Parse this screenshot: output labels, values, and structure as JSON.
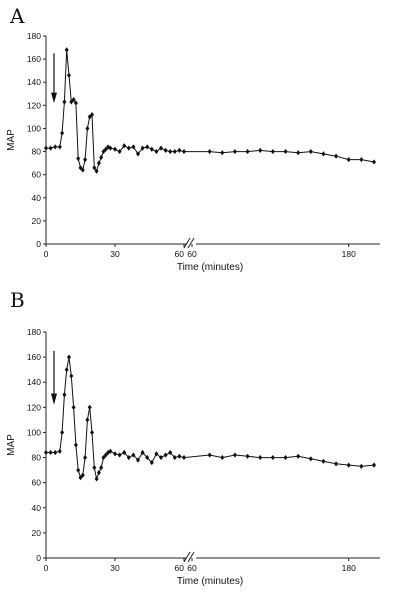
{
  "chart_data": [
    {
      "panel": "A",
      "type": "line",
      "ylabel": "MAP",
      "xlabel": "Time (minutes)",
      "ylim": [
        0,
        180
      ],
      "yticks": [
        0,
        20,
        40,
        60,
        80,
        100,
        120,
        140,
        160,
        180
      ],
      "xticks_left": [
        "0",
        "30",
        "60"
      ],
      "xticks_right": [
        "60",
        "180"
      ],
      "axis_break": true,
      "annotation": "downward-arrow",
      "series": [
        {
          "x": [
            0,
            2,
            4,
            6,
            7,
            8,
            9,
            10,
            11,
            12,
            13,
            14,
            15,
            16,
            17,
            18,
            19,
            20,
            21,
            22,
            23,
            24,
            25,
            26,
            27,
            28,
            30,
            32,
            34,
            36,
            38,
            40,
            42,
            44,
            46,
            48,
            50,
            52,
            54,
            56,
            58,
            60,
            70,
            80,
            90,
            100,
            110,
            120,
            130,
            140,
            150,
            160,
            170,
            180,
            190,
            200
          ],
          "y": [
            83,
            83,
            84,
            84,
            96,
            123,
            168,
            146,
            123,
            125,
            122,
            74,
            66,
            64,
            73,
            100,
            110,
            112,
            66,
            63,
            70,
            75,
            80,
            82,
            84,
            83,
            82,
            80,
            85,
            83,
            84,
            78,
            83,
            84,
            82,
            80,
            83,
            81,
            80,
            80,
            81,
            80,
            80,
            79,
            80,
            80,
            81,
            80,
            80,
            79,
            80,
            78,
            76,
            73,
            73,
            71
          ]
        }
      ]
    },
    {
      "panel": "B",
      "type": "line",
      "ylabel": "MAP",
      "xlabel": "Time (minutes)",
      "ylim": [
        0,
        180
      ],
      "yticks": [
        0,
        20,
        40,
        60,
        80,
        100,
        120,
        140,
        160,
        180
      ],
      "xticks_left": [
        "0",
        "30",
        "60"
      ],
      "xticks_right": [
        "60",
        "180"
      ],
      "axis_break": true,
      "annotation": "downward-arrow",
      "series": [
        {
          "x": [
            0,
            2,
            4,
            6,
            7,
            8,
            9,
            10,
            11,
            12,
            13,
            14,
            15,
            16,
            17,
            18,
            19,
            20,
            21,
            22,
            23,
            24,
            25,
            26,
            27,
            28,
            30,
            32,
            34,
            36,
            38,
            40,
            42,
            44,
            46,
            48,
            50,
            52,
            54,
            56,
            58,
            60,
            70,
            80,
            90,
            100,
            110,
            120,
            130,
            140,
            150,
            160,
            170,
            180,
            190,
            200
          ],
          "y": [
            84,
            84,
            84,
            85,
            100,
            130,
            150,
            160,
            145,
            120,
            90,
            70,
            64,
            66,
            80,
            110,
            120,
            100,
            72,
            63,
            68,
            72,
            80,
            82,
            84,
            85,
            83,
            82,
            84,
            80,
            82,
            78,
            84,
            80,
            76,
            83,
            80,
            82,
            84,
            80,
            81,
            80,
            82,
            80,
            82,
            81,
            80,
            80,
            80,
            81,
            79,
            77,
            75,
            74,
            73,
            74
          ]
        }
      ]
    }
  ]
}
